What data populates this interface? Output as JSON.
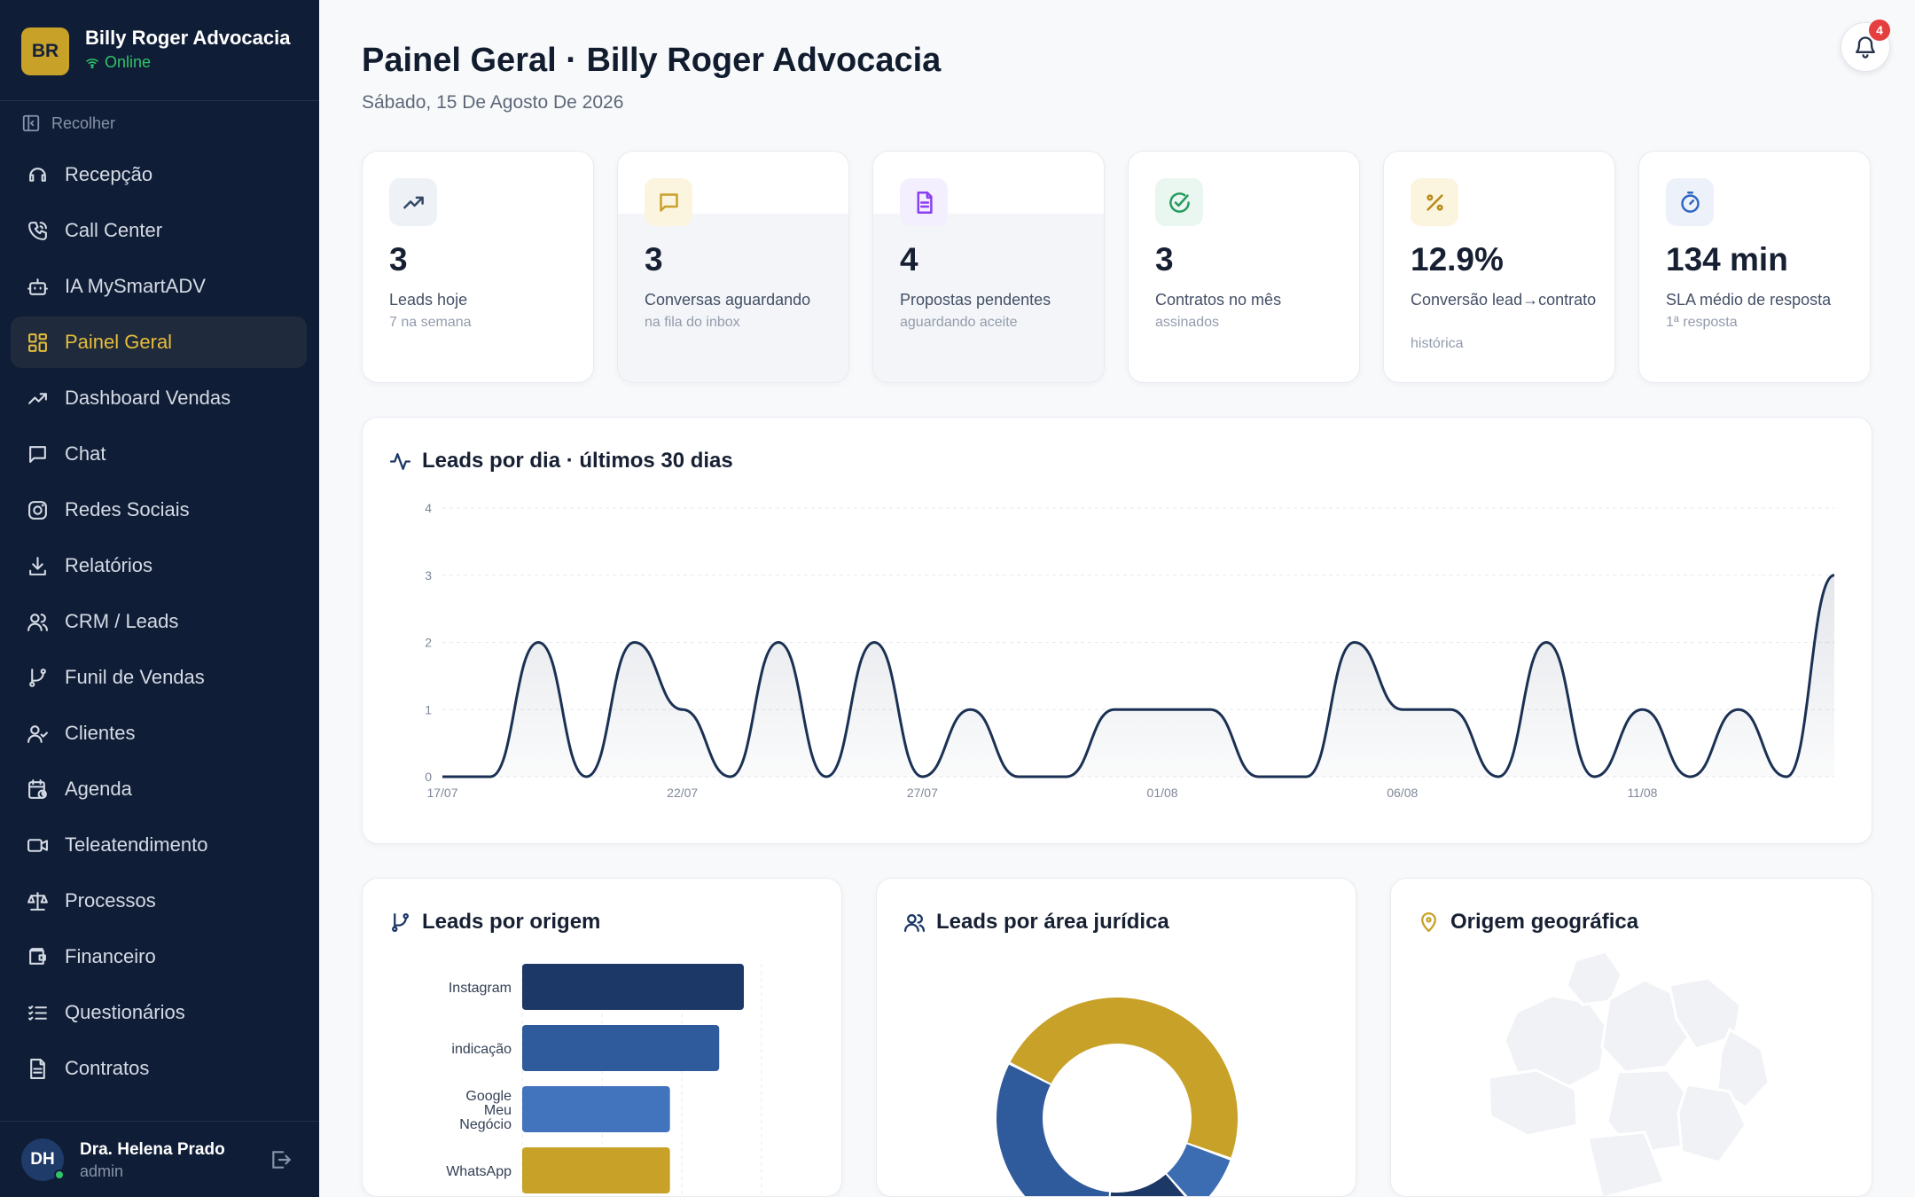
{
  "brand": {
    "initials": "BR",
    "name": "Billy Roger Advocacia",
    "status": "Online"
  },
  "sidebar": {
    "collapse_label": "Recolher",
    "items": [
      {
        "label": "Recepção",
        "icon": "headset-icon"
      },
      {
        "label": "Call Center",
        "icon": "phone-icon"
      },
      {
        "label": "IA MySmartADV",
        "icon": "bot-icon"
      },
      {
        "label": "Painel Geral",
        "icon": "dashboard-icon"
      },
      {
        "label": "Dashboard Vendas",
        "icon": "trending-up-icon"
      },
      {
        "label": "Chat",
        "icon": "chat-icon"
      },
      {
        "label": "Redes Sociais",
        "icon": "instagram-icon"
      },
      {
        "label": "Relatórios",
        "icon": "download-icon"
      },
      {
        "label": "CRM / Leads",
        "icon": "users-icon"
      },
      {
        "label": "Funil de Vendas",
        "icon": "git-branch-icon"
      },
      {
        "label": "Clientes",
        "icon": "user-check-icon"
      },
      {
        "label": "Agenda",
        "icon": "calendar-clock-icon"
      },
      {
        "label": "Teleatendimento",
        "icon": "video-icon"
      },
      {
        "label": "Processos",
        "icon": "scale-icon"
      },
      {
        "label": "Financeiro",
        "icon": "wallet-icon"
      },
      {
        "label": "Questionários",
        "icon": "list-check-icon"
      },
      {
        "label": "Contratos",
        "icon": "file-text-icon"
      }
    ]
  },
  "user": {
    "initials": "DH",
    "name": "Dra. Helena Prado",
    "role": "admin"
  },
  "header": {
    "title": "Painel Geral · Billy Roger Advocacia",
    "date": "Sábado, 15 De Agosto De 2026",
    "notifications": "4"
  },
  "stats": [
    {
      "value": "3",
      "label": "Leads hoje",
      "sub": "7 na semana",
      "icon": "trending-up-icon",
      "color": "#334866",
      "bg": "#eef1f5"
    },
    {
      "value": "3",
      "label": "Conversas aguardando",
      "sub": "na fila do inbox",
      "icon": "chat-icon",
      "color": "#c8a129",
      "bg": "#fbf4df"
    },
    {
      "value": "4",
      "label": "Propostas pendentes",
      "sub": "aguardando aceite",
      "icon": "document-icon",
      "color": "#8a3ff2",
      "bg": "#f4efff"
    },
    {
      "value": "3",
      "label": "Contratos no mês",
      "sub": "assinados",
      "icon": "check-circle-icon",
      "color": "#239b5c",
      "bg": "#eaf6f0"
    },
    {
      "value": "12.9%",
      "label": "Conversão lead→contrato",
      "sub": "histórica",
      "icon": "percent-icon",
      "color": "#b88a17",
      "bg": "#fbf4df"
    },
    {
      "value": "134 min",
      "label": "SLA médio de resposta",
      "sub": "1ª resposta",
      "icon": "timer-icon",
      "color": "#2e66c4",
      "bg": "#edf2fa"
    }
  ],
  "panels": {
    "line_title": "Leads por dia · últimos 30 dias",
    "origin_title": "Leads por origem",
    "area_title": "Leads por área jurídica",
    "geo_title": "Origem geográfica"
  },
  "chart_data": [
    {
      "type": "line",
      "title": "Leads por dia · últimos 30 dias",
      "x": [
        "17/07",
        "18/07",
        "19/07",
        "20/07",
        "21/07",
        "22/07",
        "23/07",
        "24/07",
        "25/07",
        "26/07",
        "27/07",
        "28/07",
        "29/07",
        "30/07",
        "31/07",
        "01/08",
        "02/08",
        "03/08",
        "04/08",
        "05/08",
        "06/08",
        "07/08",
        "08/08",
        "09/08",
        "10/08",
        "11/08",
        "12/08",
        "13/08",
        "14/08",
        "15/08"
      ],
      "values": [
        0,
        0,
        2,
        0,
        2,
        1,
        0,
        2,
        0,
        2,
        0,
        1,
        0,
        0,
        1,
        1,
        1,
        0,
        0,
        2,
        1,
        1,
        0,
        2,
        0,
        1,
        0,
        1,
        0,
        3
      ],
      "x_ticks": [
        "17/07",
        "22/07",
        "27/07",
        "01/08",
        "06/08",
        "11/08"
      ],
      "y_ticks": [
        0,
        1,
        2,
        3,
        4
      ],
      "ylim": [
        0,
        4
      ],
      "color": "#1b3154"
    },
    {
      "type": "bar",
      "title": "Leads por origem",
      "categories": [
        "Instagram",
        "indicação",
        "Google Meu Negócio",
        "WhatsApp"
      ],
      "values": [
        9,
        8,
        6,
        6
      ],
      "colors": [
        "#1c3866",
        "#2f5b9c",
        "#4274bd",
        "#c8a129"
      ]
    },
    {
      "type": "pie",
      "title": "Leads por área jurídica",
      "values": [
        48,
        8,
        13,
        31
      ],
      "colors": [
        "#c8a129",
        "#3c6db3",
        "#1c3866",
        "#2f5b9c"
      ]
    }
  ]
}
